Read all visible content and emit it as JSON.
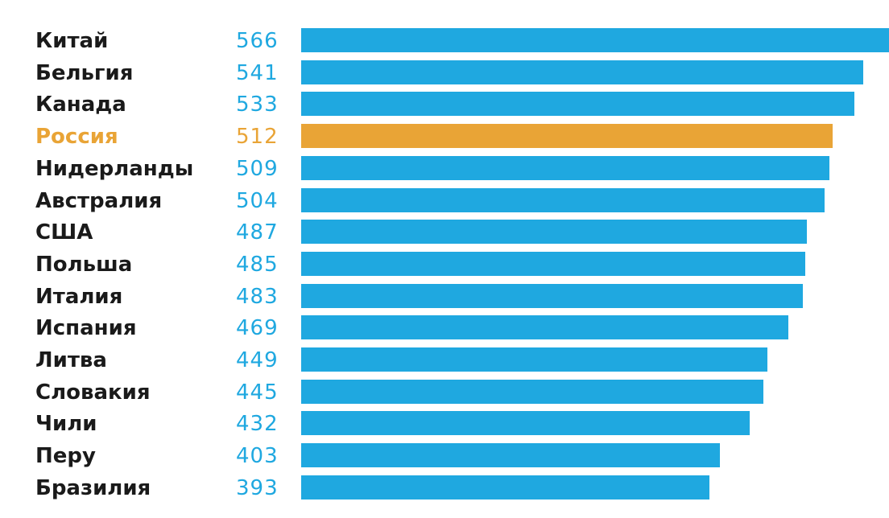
{
  "chart_data": {
    "type": "bar",
    "orientation": "horizontal",
    "categories": [
      "Китай",
      "Бельгия",
      "Канада",
      "Россия",
      "Нидерланды",
      "Австралия",
      "США",
      "Польша",
      "Италия",
      "Испания",
      "Литва",
      "Словакия",
      "Чили",
      "Перу",
      "Бразилия"
    ],
    "values": [
      566,
      541,
      533,
      512,
      509,
      504,
      487,
      485,
      483,
      469,
      449,
      445,
      432,
      403,
      393
    ],
    "value_labels": [
      "566",
      "541",
      "533",
      "512",
      "509",
      "504",
      "487",
      "485",
      "483",
      "469",
      "449",
      "445",
      "432",
      "403",
      "393"
    ],
    "highlight": "Россия",
    "title": "",
    "xlabel": "",
    "ylabel": "",
    "grid": false,
    "legend": "none"
  },
  "colors": {
    "bar": "#1fa8e0",
    "highlight": "#e9a436",
    "label": "#1a1a1a",
    "value": "#1fa8e0"
  }
}
